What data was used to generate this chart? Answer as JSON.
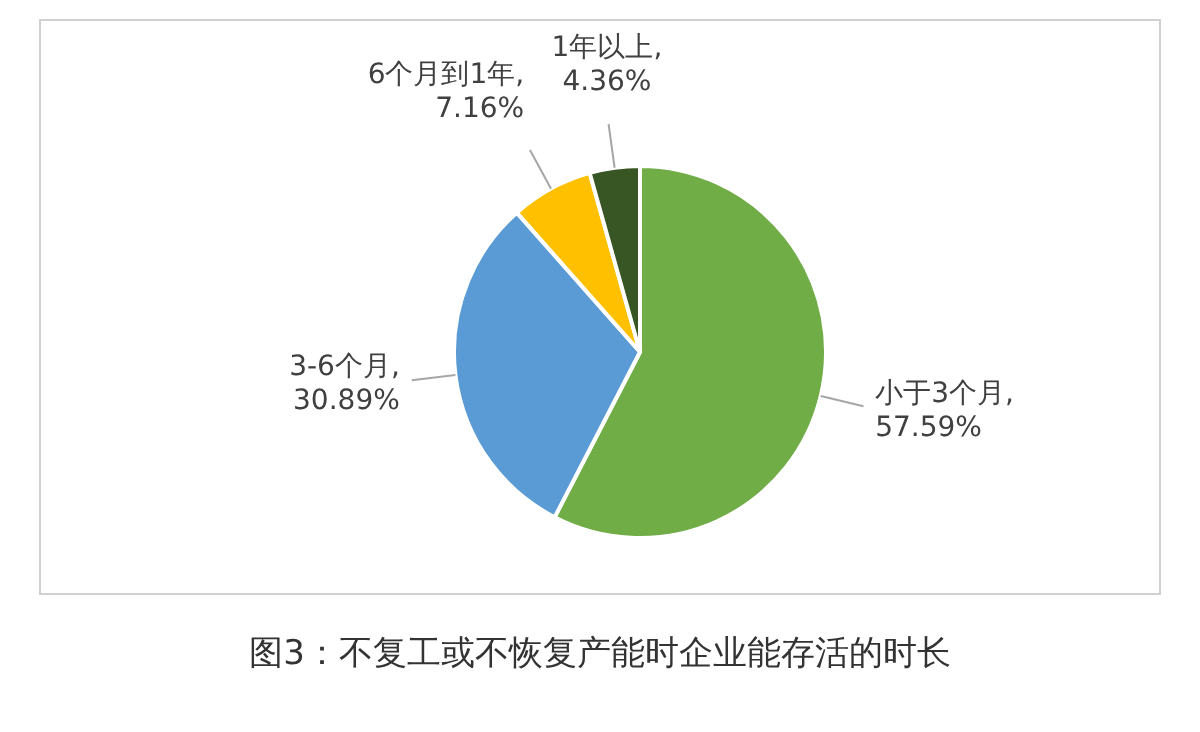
{
  "chart_data": {
    "type": "pie",
    "title": "图3：不复工或不恢复产能时企业能存活的时长",
    "categories": [
      "小于3个月",
      "3-6个月",
      "6个月到1年",
      "1年以上"
    ],
    "values": [
      57.59,
      30.89,
      7.16,
      4.36
    ],
    "colors": [
      "#70ad47",
      "#5b9bd5",
      "#ffc000",
      "#375623"
    ],
    "value_labels": [
      ", 57.59%",
      ", 30.89%",
      ", 7.16%",
      ", 4.36%"
    ]
  }
}
